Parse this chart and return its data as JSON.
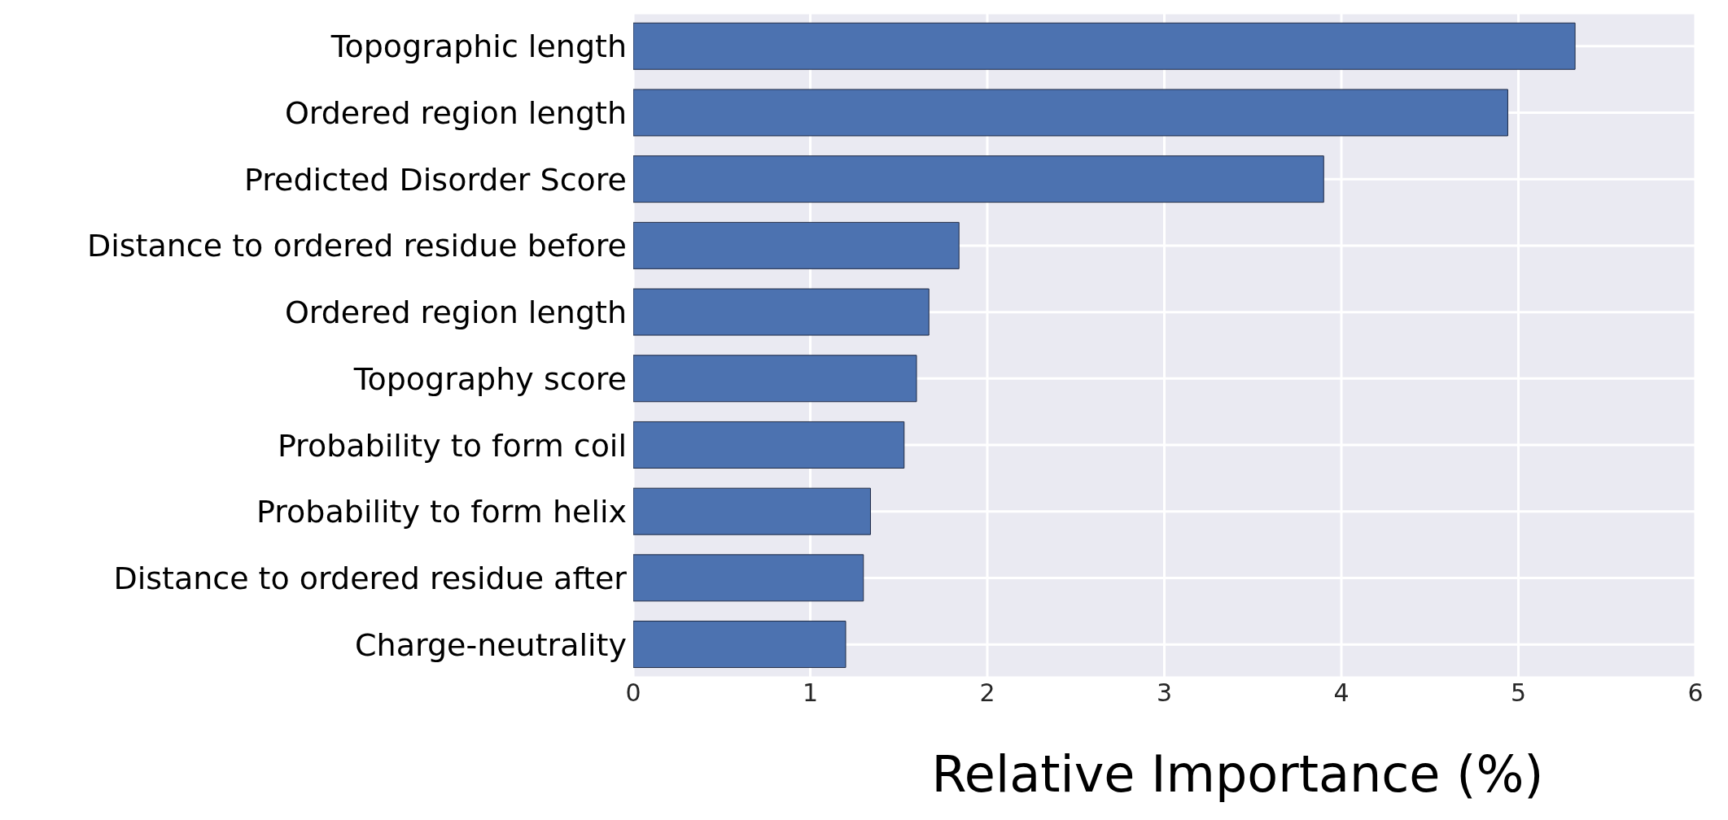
{
  "chart_data": {
    "type": "bar",
    "orientation": "horizontal",
    "xlabel": "Relative Importance (%)",
    "categories": [
      "Topographic length",
      "Ordered region length",
      "Predicted Disorder Score",
      "Distance to ordered residue before",
      "Ordered region length",
      "Topography score",
      "Probability to form coil",
      "Probability to form helix",
      "Distance to ordered residue after",
      "Charge-neutrality"
    ],
    "values": [
      5.32,
      4.94,
      3.9,
      1.84,
      1.67,
      1.6,
      1.53,
      1.34,
      1.3,
      1.2
    ],
    "color": "#4c72b0",
    "xlim": [
      0,
      6
    ],
    "xticks": [
      0,
      1,
      2,
      3,
      4,
      5,
      6
    ],
    "grid": true
  }
}
